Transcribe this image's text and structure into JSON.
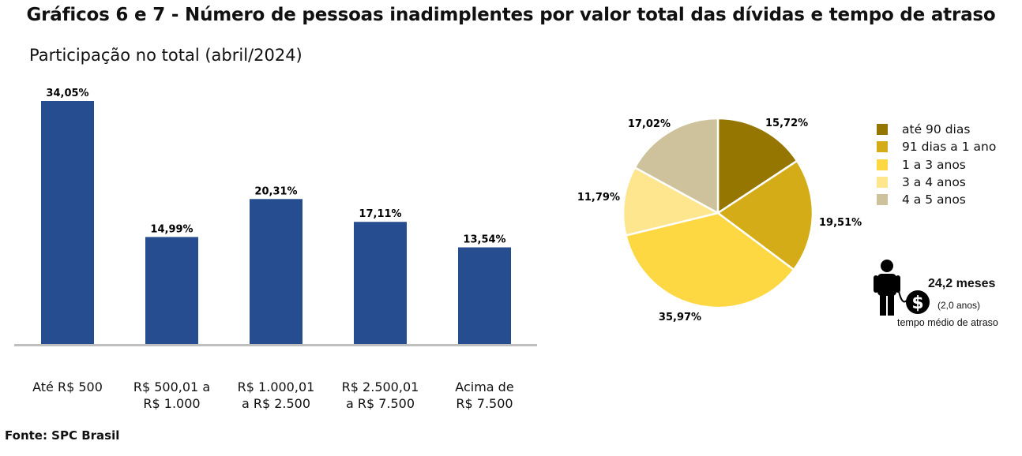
{
  "title": "Gráficos 6 e 7 - Número de pessoas inadimplentes por valor total das dívidas e tempo de atraso",
  "subtitle": "Participação no total (abril/2024)",
  "source": "Fonte: SPC Brasil",
  "colors": {
    "bar": "#264D8F",
    "axis": "#BFBFBF",
    "pie": [
      "#957600",
      "#D4AC17",
      "#FDD843",
      "#FDE68E",
      "#CDC29B"
    ]
  },
  "chart_data": [
    {
      "type": "bar",
      "categories": [
        [
          "Até R$ 500"
        ],
        [
          "R$ 500,01 a",
          "R$ 1.000"
        ],
        [
          "R$ 1.000,01",
          "a R$ 2.500"
        ],
        [
          "R$ 2.500,01",
          "a R$ 7.500"
        ],
        [
          "Acima de",
          "R$ 7.500"
        ]
      ],
      "values": [
        34.05,
        14.99,
        20.31,
        17.11,
        13.54
      ],
      "value_labels": [
        "34,05%",
        "14,99%",
        "20,31%",
        "17,11%",
        "13,54%"
      ],
      "ylim": [
        0,
        35
      ]
    },
    {
      "type": "pie",
      "labels": [
        "até 90 dias",
        "91 dias a 1 ano",
        "1 a 3 anos",
        "3 a 4 anos",
        "4 a 5 anos"
      ],
      "values": [
        15.72,
        19.51,
        35.97,
        11.79,
        17.02
      ],
      "value_labels": [
        "15,72%",
        "19,51%",
        "35,97%",
        "11,79%",
        "17,02%"
      ],
      "legend_position": "right"
    }
  ],
  "average_delay": {
    "value": "24,2 meses",
    "sub": "(2,0 anos)",
    "caption": "tempo médio de atraso",
    "icon": "person-with-money-bag-icon"
  }
}
